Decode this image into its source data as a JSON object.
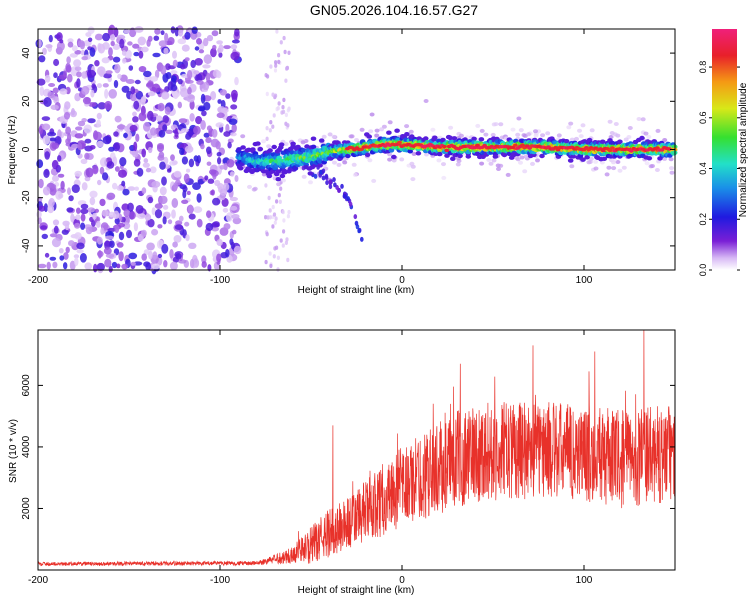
{
  "figure_title": "GN05.2026.104.16.57.G27",
  "colors": {
    "snr_line": "#e8312a",
    "ridge_low": "#2b1bd6",
    "ridge_mid": "#23e0c0",
    "ridge_high": "#e0203a",
    "scatter": "#7a1fd6"
  },
  "chart_data": [
    {
      "type": "heatmap",
      "title": "GN05.2026.104.16.57.G27",
      "xlabel": "Height of straight line (km)",
      "ylabel": "Frequency (Hz)",
      "xlim": [
        -200,
        150
      ],
      "ylim": [
        -50,
        50
      ],
      "xticks": [
        -200,
        -100,
        0,
        100
      ],
      "xtick_labels": [
        "-200",
        "-100",
        "0",
        "100"
      ],
      "yticks": [
        -40,
        -20,
        0,
        20,
        40
      ],
      "ytick_labels": [
        "-40",
        "-20",
        "0",
        "20",
        "40"
      ],
      "colorbar": {
        "label": "Normalized spectral amplitude",
        "range": [
          0,
          0.95
        ],
        "ticks": [
          0.0,
          0.2,
          0.4,
          0.6,
          0.8
        ],
        "tick_labels": [
          "0.0",
          "0.2",
          "0.4",
          "0.6",
          "0.8"
        ],
        "colormap": "rainbow (white-violet-blue-cyan-green-yellow-orange-red-magenta)"
      },
      "ridge": {
        "description": "dominant frequency band near 0 Hz",
        "x": [
          -90,
          -80,
          -70,
          -60,
          -50,
          -40,
          -30,
          -20,
          -10,
          0,
          20,
          40,
          60,
          80,
          100,
          120,
          150
        ],
        "freq_hz": [
          -3,
          -5,
          -5,
          -4,
          -3,
          -1,
          0,
          1,
          2,
          2,
          1,
          1,
          1,
          1,
          0,
          0,
          0
        ],
        "amplitude": [
          0.35,
          0.45,
          0.5,
          0.55,
          0.55,
          0.6,
          0.75,
          0.8,
          0.85,
          0.85,
          0.85,
          0.85,
          0.85,
          0.85,
          0.85,
          0.85,
          0.8
        ]
      },
      "branch": {
        "description": "weak descending branch",
        "x": [
          -55,
          -45,
          -35,
          -28,
          -22
        ],
        "freq_hz": [
          -6,
          -10,
          -15,
          -23,
          -38
        ]
      },
      "noise_region": {
        "x_range": [
          -200,
          -90
        ],
        "amplitude": 0.15
      },
      "sparse_band": {
        "x_range": [
          -75,
          -62
        ],
        "amplitude": 0.05
      }
    },
    {
      "type": "line",
      "xlabel": "Height of straight line (km)",
      "ylabel": "SNR (10 * v/v)",
      "xlim": [
        -200,
        150
      ],
      "ylim": [
        0,
        7800
      ],
      "xticks": [
        -200,
        -100,
        0,
        100
      ],
      "xtick_labels": [
        "-200",
        "-100",
        "0",
        "100"
      ],
      "yticks": [
        2000,
        4000,
        6000
      ],
      "ytick_labels": [
        "2000",
        "4000",
        "6000"
      ],
      "series": [
        {
          "name": "SNR",
          "envelope_x": [
            -200,
            -80,
            -70,
            -60,
            -50,
            -40,
            -30,
            -20,
            -10,
            0,
            10,
            20,
            30,
            40,
            60,
            80,
            100,
            120,
            150
          ],
          "envelope_mean": [
            200,
            220,
            350,
            500,
            800,
            1200,
            1500,
            1900,
            2300,
            2700,
            3000,
            3300,
            3600,
            3800,
            3900,
            3900,
            3800,
            3600,
            3800
          ],
          "envelope_spread": [
            60,
            70,
            150,
            300,
            600,
            800,
            900,
            1000,
            1200,
            1300,
            1400,
            1500,
            1600,
            1600,
            1600,
            1600,
            1600,
            1600,
            1600
          ],
          "peaks": [
            {
              "x": -38,
              "y": 4700
            },
            {
              "x": 32,
              "y": 6700
            },
            {
              "x": 72,
              "y": 7300
            },
            {
              "x": 106,
              "y": 7100
            },
            {
              "x": 133,
              "y": 7900
            }
          ]
        }
      ]
    }
  ]
}
